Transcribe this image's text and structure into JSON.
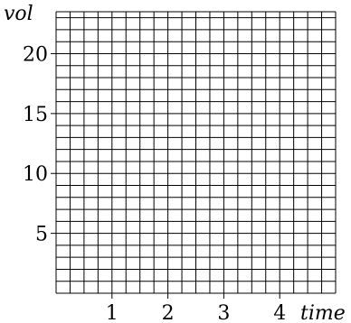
{
  "chart_data": {
    "type": "line",
    "title": "",
    "xlabel": "time",
    "ylabel": "vol",
    "xlim": [
      0,
      5
    ],
    "ylim": [
      0,
      23.5
    ],
    "x_ticks": [
      1,
      2,
      3,
      4
    ],
    "y_ticks": [
      5,
      10,
      15,
      20
    ],
    "x_tick_labels": [
      "1",
      "2",
      "3",
      "4"
    ],
    "y_tick_labels": [
      "5",
      "10",
      "15",
      "20"
    ],
    "x_minor_step": 0.25,
    "y_minor_step": 1,
    "grid": true,
    "series": []
  },
  "colors": {
    "grid": "#000000",
    "background": "#ffffff",
    "text": "#000000"
  }
}
